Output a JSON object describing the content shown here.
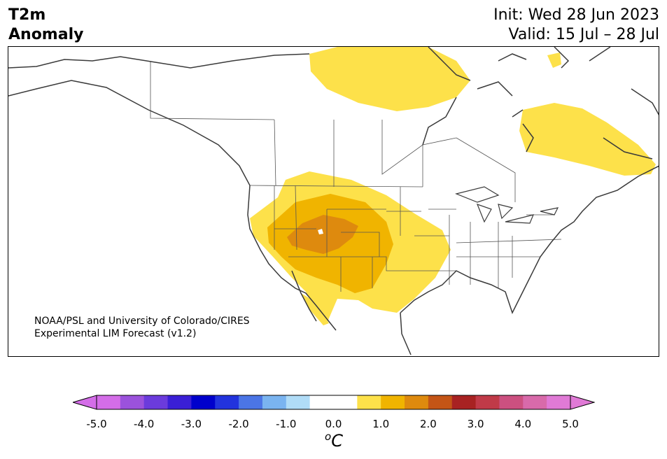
{
  "header": {
    "variable": "T2m",
    "type": "Anomaly",
    "init": "Init: Wed 28 Jun 2023",
    "valid": "Valid: 15 Jul – 28 Jul"
  },
  "credit": {
    "line1": "NOAA/PSL and University of Colorado/CIRES",
    "line2": "Experimental LIM Forecast (v1.2)"
  },
  "colorbar": {
    "unit_prefix": "o",
    "unit": "C",
    "ticks": [
      "-5.0",
      "-4.0",
      "-3.0",
      "-2.0",
      "-1.0",
      "0.0",
      "1.0",
      "2.0",
      "3.0",
      "4.0",
      "5.0"
    ],
    "colors": [
      "#d46de8",
      "#9b52dc",
      "#6b3bdc",
      "#3a1fd6",
      "#0000cc",
      "#2233dd",
      "#4b75e6",
      "#7ab4f0",
      "#b0dcf7",
      "#ffffff",
      "#ffffff",
      "#fde14a",
      "#f0b400",
      "#de8a0e",
      "#c45516",
      "#a82222",
      "#c03a48",
      "#cc5080",
      "#d86aaa",
      "#e07ad6"
    ],
    "extend_low_color": "#d46de8",
    "extend_high_color": "#e07ad6"
  },
  "legend_colors": {
    "anom_0_5_to_1": "#fde14a",
    "anom_1_to_1_5": "#f0b400",
    "anom_1_5_to_2": "#de8a0e",
    "land_border": "#3a3a3a"
  }
}
